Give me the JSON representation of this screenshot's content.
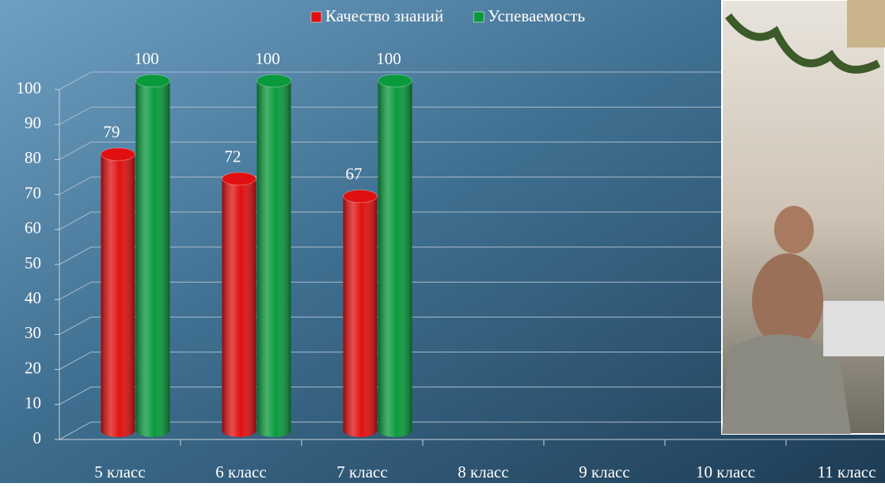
{
  "chart_data": {
    "type": "bar",
    "categories": [
      "5 класс",
      "6 класс",
      "7 класс",
      "8 класс",
      "9 класс",
      "10 класс",
      "11 класс"
    ],
    "series": [
      {
        "name": "Качество знаний",
        "color": "#e01010",
        "values": [
          79,
          72,
          67,
          null,
          null,
          null,
          null
        ]
      },
      {
        "name": "Успеваемость",
        "color": "#0a9a3c",
        "values": [
          100,
          100,
          100,
          null,
          null,
          null,
          null
        ]
      }
    ],
    "ylim": [
      0,
      100
    ],
    "yticks": [
      0,
      10,
      20,
      30,
      40,
      50,
      60,
      70,
      80,
      90,
      100
    ],
    "grid": true,
    "legend": "top"
  }
}
